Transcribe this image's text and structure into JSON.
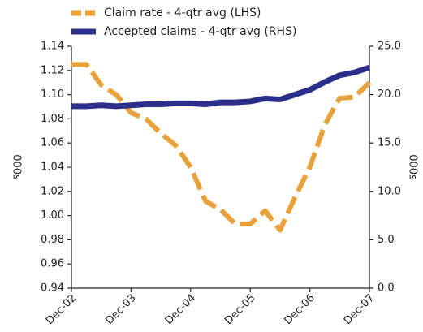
{
  "chart_data": {
    "type": "line",
    "categories": [
      "Dec-02",
      null,
      null,
      null,
      "Dec-03",
      null,
      null,
      null,
      "Dec-04",
      null,
      null,
      null,
      "Dec-05",
      null,
      null,
      null,
      "Dec-06",
      null,
      null,
      null,
      "Dec-07"
    ],
    "series": [
      {
        "name": "Claim rate - 4-qtr avg (LHS)",
        "color": "#e9a23b",
        "dashed": true,
        "values": [
          1.125,
          1.125,
          1.108,
          1.1,
          1.085,
          1.08,
          1.068,
          1.058,
          1.04,
          1.012,
          1.005,
          0.993,
          0.993,
          1.004,
          0.988,
          1.015,
          1.04,
          1.075,
          1.097,
          1.098,
          1.11
        ]
      },
      {
        "name": "Accepted claims - 4-qtr avg (RHS)",
        "color": "#2b2f8c",
        "axis": "y2",
        "values": [
          18.8,
          18.8,
          18.9,
          18.8,
          18.9,
          19.0,
          19.0,
          19.1,
          19.1,
          19.0,
          19.2,
          19.2,
          19.3,
          19.6,
          19.5,
          20.0,
          20.5,
          21.3,
          22.0,
          22.3,
          22.8
        ]
      }
    ],
    "ylabel": "000s",
    "y2label": "000s",
    "ylim": [
      0.94,
      1.14
    ],
    "yticks": [
      0.94,
      0.96,
      0.98,
      {
        "value": 1,
        "label": "1.00"
      },
      1.02,
      1.04,
      1.06,
      1.08,
      {
        "value": 1.1,
        "label": "1.10"
      },
      1.12,
      1.14
    ],
    "y2lim": [
      0,
      25
    ],
    "y2ticks": [
      {
        "value": 0,
        "label": "0.0"
      },
      {
        "value": 5,
        "label": "5.0"
      },
      {
        "value": 10,
        "label": "10.0"
      },
      {
        "value": 15,
        "label": "15.0"
      },
      {
        "value": 20,
        "label": "20.0"
      },
      {
        "value": 25,
        "label": "25.0"
      }
    ],
    "grid": false,
    "legend": "top"
  }
}
